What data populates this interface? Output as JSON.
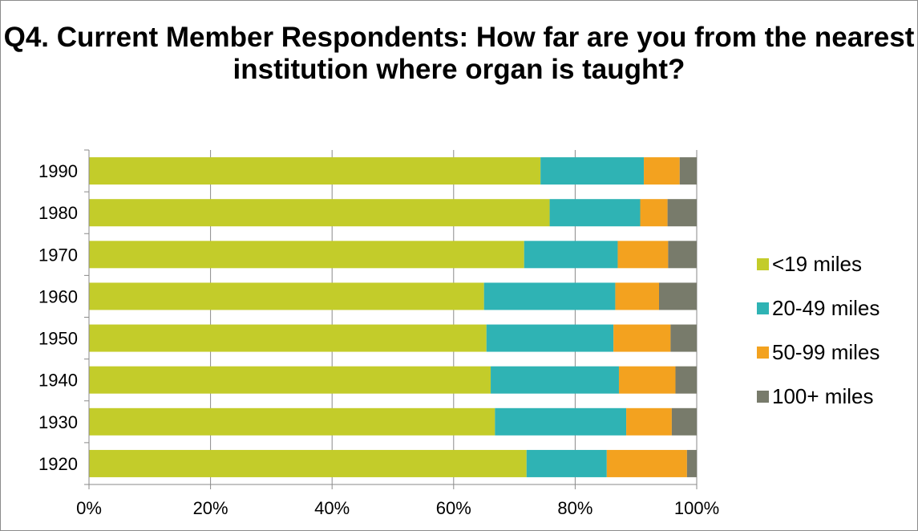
{
  "chart_data": {
    "type": "bar",
    "orientation": "horizontal",
    "stacked": "percent",
    "title": "Q4. Current Member Respondents: How far are you from the nearest institution where organ is taught?",
    "xlabel": "",
    "ylabel": "",
    "categories": [
      "1990",
      "1980",
      "1970",
      "1960",
      "1950",
      "1940",
      "1930",
      "1920"
    ],
    "xlim": [
      0,
      100
    ],
    "x_ticks": [
      "0%",
      "20%",
      "40%",
      "60%",
      "80%",
      "100%"
    ],
    "grid": "vertical",
    "legend_position": "right",
    "series": [
      {
        "name": "<19 miles",
        "color": "#c3cc2a",
        "values": [
          74.3,
          75.8,
          71.6,
          65.0,
          65.4,
          66.1,
          66.8,
          72.0
        ]
      },
      {
        "name": "20-49 miles",
        "color": "#2fb3b4",
        "values": [
          17.0,
          14.9,
          15.4,
          21.6,
          20.9,
          21.1,
          21.6,
          13.2
        ]
      },
      {
        "name": "50-99 miles",
        "color": "#f3a21f",
        "values": [
          5.9,
          4.5,
          8.3,
          7.2,
          9.4,
          9.3,
          7.5,
          13.2
        ]
      },
      {
        "name": "100+ miles",
        "color": "#787b6b",
        "values": [
          2.8,
          4.8,
          4.7,
          6.2,
          4.3,
          3.5,
          4.1,
          1.6
        ]
      }
    ]
  }
}
